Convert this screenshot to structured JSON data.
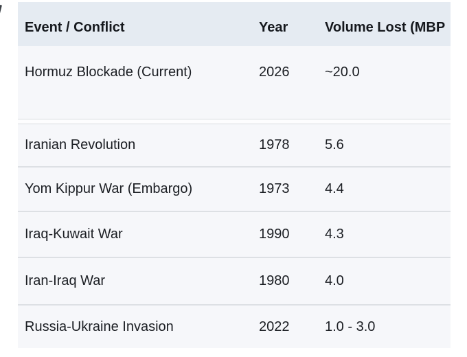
{
  "chart_data": {
    "type": "table",
    "title": "",
    "columns": [
      "Event / Conflict",
      "Year",
      "Volume Lost (MBP"
    ],
    "rows": [
      {
        "event": "Hormuz Blockade (Current)",
        "year": "2026",
        "volume": "~20.0"
      },
      {
        "event": "Iranian Revolution",
        "year": "1978",
        "volume": "5.6"
      },
      {
        "event": "Yom Kippur War (Embargo)",
        "year": "1973",
        "volume": "4.4"
      },
      {
        "event": "Iraq-Kuwait War",
        "year": "1990",
        "volume": "4.3"
      },
      {
        "event": "Iran-Iraq War",
        "year": "1980",
        "volume": "4.0"
      },
      {
        "event": "Russia-Ukraine Invasion",
        "year": "2022",
        "volume": "1.0 - 3.0"
      }
    ],
    "layout_hints": {
      "header_row_shaded": true,
      "first_row_extra_height": true,
      "volume_header_clipped_at_right_edge": true
    }
  },
  "colors": {
    "page_bg": "#ffffff",
    "header_bg": "#e5ebf2",
    "row_bg": "#f6f7fa",
    "divider": "#dde0e4",
    "separator_band": "#fdfdfe",
    "text": "#1b1e23"
  }
}
